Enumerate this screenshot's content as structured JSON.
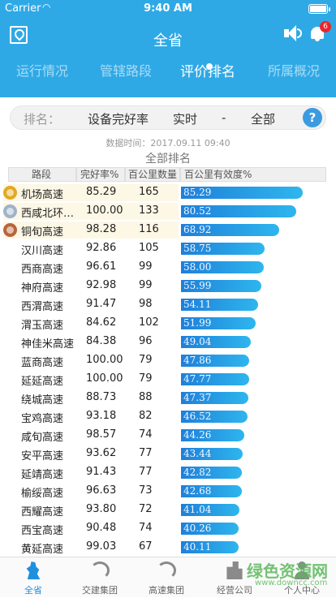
{
  "status_bar": {
    "carrier": "Carrier",
    "wifi_icon": "wifi-icon",
    "time": "9:40 AM"
  },
  "header": {
    "title": "全省",
    "notification_count": "6",
    "tabs": [
      {
        "label": "运行情况"
      },
      {
        "label": "管辖路段"
      },
      {
        "label": "评价排名"
      },
      {
        "label": "所属概况"
      }
    ]
  },
  "filter": {
    "label": "排名：",
    "metric": "设备完好率",
    "period": "实时",
    "separator": "-",
    "scope": "全部",
    "help": "?"
  },
  "data_time": "数据时间：2017.09.11 09:40",
  "section_title": "全部排名",
  "columns": {
    "road": "路段",
    "rate": "完好率%",
    "km": "百公里数量",
    "efficiency": "百公里有效度%"
  },
  "colors": {
    "header_blue": "#2fa9e6",
    "bar_start": "#1f7fd9",
    "bar_end": "#2eb6ee",
    "gold": "#e3a91f",
    "silver": "#9fb3c8",
    "bronze": "#b9653a"
  },
  "rows": [
    {
      "name": "机场高速",
      "rate": "85.29",
      "km": "165",
      "eff": "85.29",
      "medal": "gold"
    },
    {
      "name": "西咸北环…",
      "rate": "100.00",
      "km": "133",
      "eff": "80.52",
      "medal": "silver"
    },
    {
      "name": "铜旬高速",
      "rate": "98.28",
      "km": "116",
      "eff": "68.92",
      "medal": "bronze"
    },
    {
      "name": "汉川高速",
      "rate": "92.86",
      "km": "105",
      "eff": "58.75"
    },
    {
      "name": "西商高速",
      "rate": "96.61",
      "km": "99",
      "eff": "58.00"
    },
    {
      "name": "神府高速",
      "rate": "92.98",
      "km": "99",
      "eff": "55.99"
    },
    {
      "name": "西渭高速",
      "rate": "91.47",
      "km": "98",
      "eff": "54.11"
    },
    {
      "name": "渭玉高速",
      "rate": "84.62",
      "km": "102",
      "eff": "51.99"
    },
    {
      "name": "神佳米高速",
      "rate": "84.38",
      "km": "96",
      "eff": "49.04"
    },
    {
      "name": "蓝商高速",
      "rate": "100.00",
      "km": "79",
      "eff": "47.86"
    },
    {
      "name": "延延高速",
      "rate": "100.00",
      "km": "79",
      "eff": "47.77"
    },
    {
      "name": "绕城高速",
      "rate": "88.73",
      "km": "88",
      "eff": "47.37"
    },
    {
      "name": "宝鸡高速",
      "rate": "93.18",
      "km": "82",
      "eff": "46.52"
    },
    {
      "name": "咸旬高速",
      "rate": "98.57",
      "km": "74",
      "eff": "44.26"
    },
    {
      "name": "安平高速",
      "rate": "93.62",
      "km": "77",
      "eff": "43.44"
    },
    {
      "name": "延靖高速",
      "rate": "91.43",
      "km": "77",
      "eff": "42.82"
    },
    {
      "name": "榆绥高速",
      "rate": "96.63",
      "km": "73",
      "eff": "42.68"
    },
    {
      "name": "西耀高速",
      "rate": "93.80",
      "km": "72",
      "eff": "41.04"
    },
    {
      "name": "西宝高速",
      "rate": "90.48",
      "km": "74",
      "eff": "40.26"
    },
    {
      "name": "黄延高速",
      "rate": "99.03",
      "km": "67",
      "eff": "40.11"
    }
  ],
  "tabbar": [
    {
      "label": "全省",
      "icon": "province-map-icon"
    },
    {
      "label": "交建集团",
      "icon": "jiaojian-logo-icon"
    },
    {
      "label": "高速集团",
      "icon": "gaosu-logo-icon"
    },
    {
      "label": "经营公司",
      "icon": "building-icon"
    },
    {
      "label": "个人中心",
      "icon": "person-icon"
    }
  ],
  "watermark": {
    "title": "绿色资源网",
    "url": "www.downcc.com"
  }
}
